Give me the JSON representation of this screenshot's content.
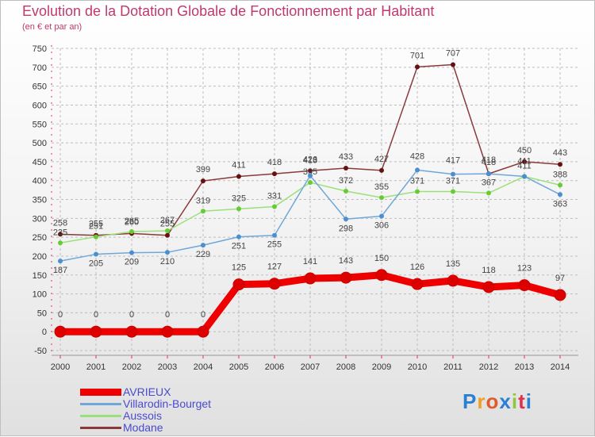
{
  "title": "Evolution de la Dotation Globale de Fonctionnement par Habitant",
  "subtitle": "(en € et par an)",
  "brand": "Proxiti",
  "colors": {
    "title": "#c0396e",
    "grid": "#bdbdbd",
    "axis": "#e03060",
    "legend_text": "#4a4ad0",
    "brand_letters": [
      "#2a7fd4",
      "#f0a020",
      "#e05a2a",
      "#2a7fd4",
      "#8ec63f",
      "#e03050",
      "#2a7fd4"
    ]
  },
  "chart_data": {
    "type": "line",
    "title": "Evolution de la Dotation Globale de Fonctionnement par Habitant",
    "subtitle": "(en € et par an)",
    "xlabel": "",
    "ylabel": "",
    "x": [
      "2000",
      "2001",
      "2002",
      "2003",
      "2004",
      "2005",
      "2006",
      "2007",
      "2008",
      "2009",
      "2010",
      "2011",
      "2012",
      "2013",
      "2014"
    ],
    "ylim": [
      -50,
      750
    ],
    "yticks": [
      -50,
      0,
      50,
      100,
      150,
      200,
      250,
      300,
      350,
      400,
      450,
      500,
      550,
      600,
      650,
      700,
      750
    ],
    "grid": true,
    "legend_position": "bottom-left",
    "series": [
      {
        "name": "AVRIEUX",
        "color": "#ee0000",
        "marker_color": "#dd0000",
        "thick": true,
        "values": [
          0,
          0,
          0,
          0,
          0,
          125,
          127,
          141,
          143,
          150,
          126,
          135,
          118,
          123,
          97
        ]
      },
      {
        "name": "Villarodin-Bourget",
        "color": "#6fa8d8",
        "marker_color": "#4a8fd0",
        "thick": false,
        "values": [
          187,
          205,
          209,
          210,
          229,
          251,
          255,
          413,
          298,
          306,
          428,
          417,
          418,
          411,
          363
        ]
      },
      {
        "name": "Aussois",
        "color": "#9be07a",
        "marker_color": "#66cc33",
        "thick": false,
        "values": [
          235,
          251,
          265,
          267,
          319,
          325,
          331,
          395,
          372,
          355,
          371,
          371,
          367,
          411,
          388
        ]
      },
      {
        "name": "Modane",
        "color": "#8a3a3a",
        "marker_color": "#661111",
        "thick": false,
        "values": [
          258,
          255,
          260,
          255,
          399,
          411,
          418,
          426,
          433,
          427,
          701,
          707,
          418,
          450,
          443
        ]
      }
    ],
    "data_labels": {
      "AVRIEUX": [
        "0",
        "0",
        "0",
        "0",
        "0",
        "125",
        "127",
        "141",
        "143",
        "150",
        "126",
        "135",
        "118",
        "123",
        "97"
      ],
      "Villarodin-Bourget": [
        "187",
        "205",
        "209",
        "210",
        "229",
        "251",
        "255",
        "413",
        "298",
        "306",
        "428",
        "417",
        "418",
        "411",
        "363"
      ],
      "Aussois": [
        "235",
        "251",
        "265",
        "267",
        "319",
        "325",
        "331",
        "395",
        "372",
        "355",
        "371",
        "371",
        "367",
        "411",
        "388"
      ],
      "Modane": [
        "258",
        "255",
        "260",
        "255",
        "399",
        "411",
        "418",
        "426",
        "433",
        "427",
        "701",
        "707",
        "418",
        "450",
        "443"
      ]
    }
  }
}
